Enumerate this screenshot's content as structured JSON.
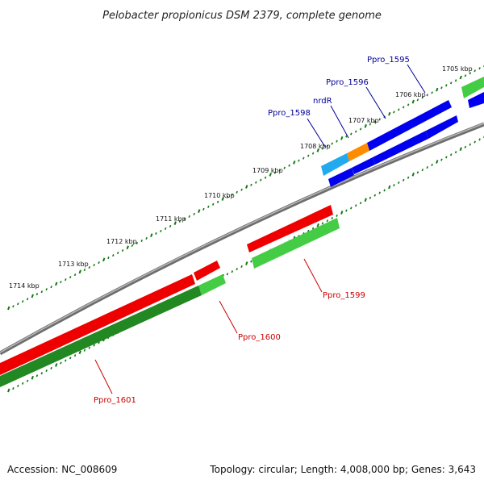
{
  "title": "Pelobacter propionicus DSM 2379, complete genome",
  "footer": {
    "accession": "Accession: NC_008609",
    "summary": "Topology: circular; Length: 4,008,000 bp; Genes: 3,643"
  },
  "ticks": [
    "1705 kbp",
    "1706 kbp",
    "1707 kbp",
    "1708 kbp",
    "1709 kbp",
    "1710 kbp",
    "1711 kbp",
    "1712 kbp",
    "1713 kbp",
    "1714 kbp"
  ],
  "labels": [
    {
      "id": "ppro-1595",
      "text": "Ppro_1595",
      "strand": "forward"
    },
    {
      "id": "ppro-1596",
      "text": "Ppro_1596",
      "strand": "forward"
    },
    {
      "id": "nrdr",
      "text": "nrdR",
      "strand": "forward"
    },
    {
      "id": "ppro-1598",
      "text": "Ppro_1598",
      "strand": "forward"
    },
    {
      "id": "ppro-1599",
      "text": "Ppro_1599",
      "strand": "reverse"
    },
    {
      "id": "ppro-1600",
      "text": "Ppro_1600",
      "strand": "reverse"
    },
    {
      "id": "ppro-1601",
      "text": "Ppro_1601",
      "strand": "reverse"
    }
  ],
  "colors": {
    "forward_cds": "#0000ee",
    "reverse_cds": "#ee0000",
    "forward_gene": "#44cc44",
    "reverse_gene": "#228822",
    "nrdR": "#ff8c00",
    "ppro_1598": "#22aaee",
    "backbone": "#888888",
    "tick": "#117711",
    "forward_label": "#000099",
    "reverse_label": "#cc0000"
  }
}
